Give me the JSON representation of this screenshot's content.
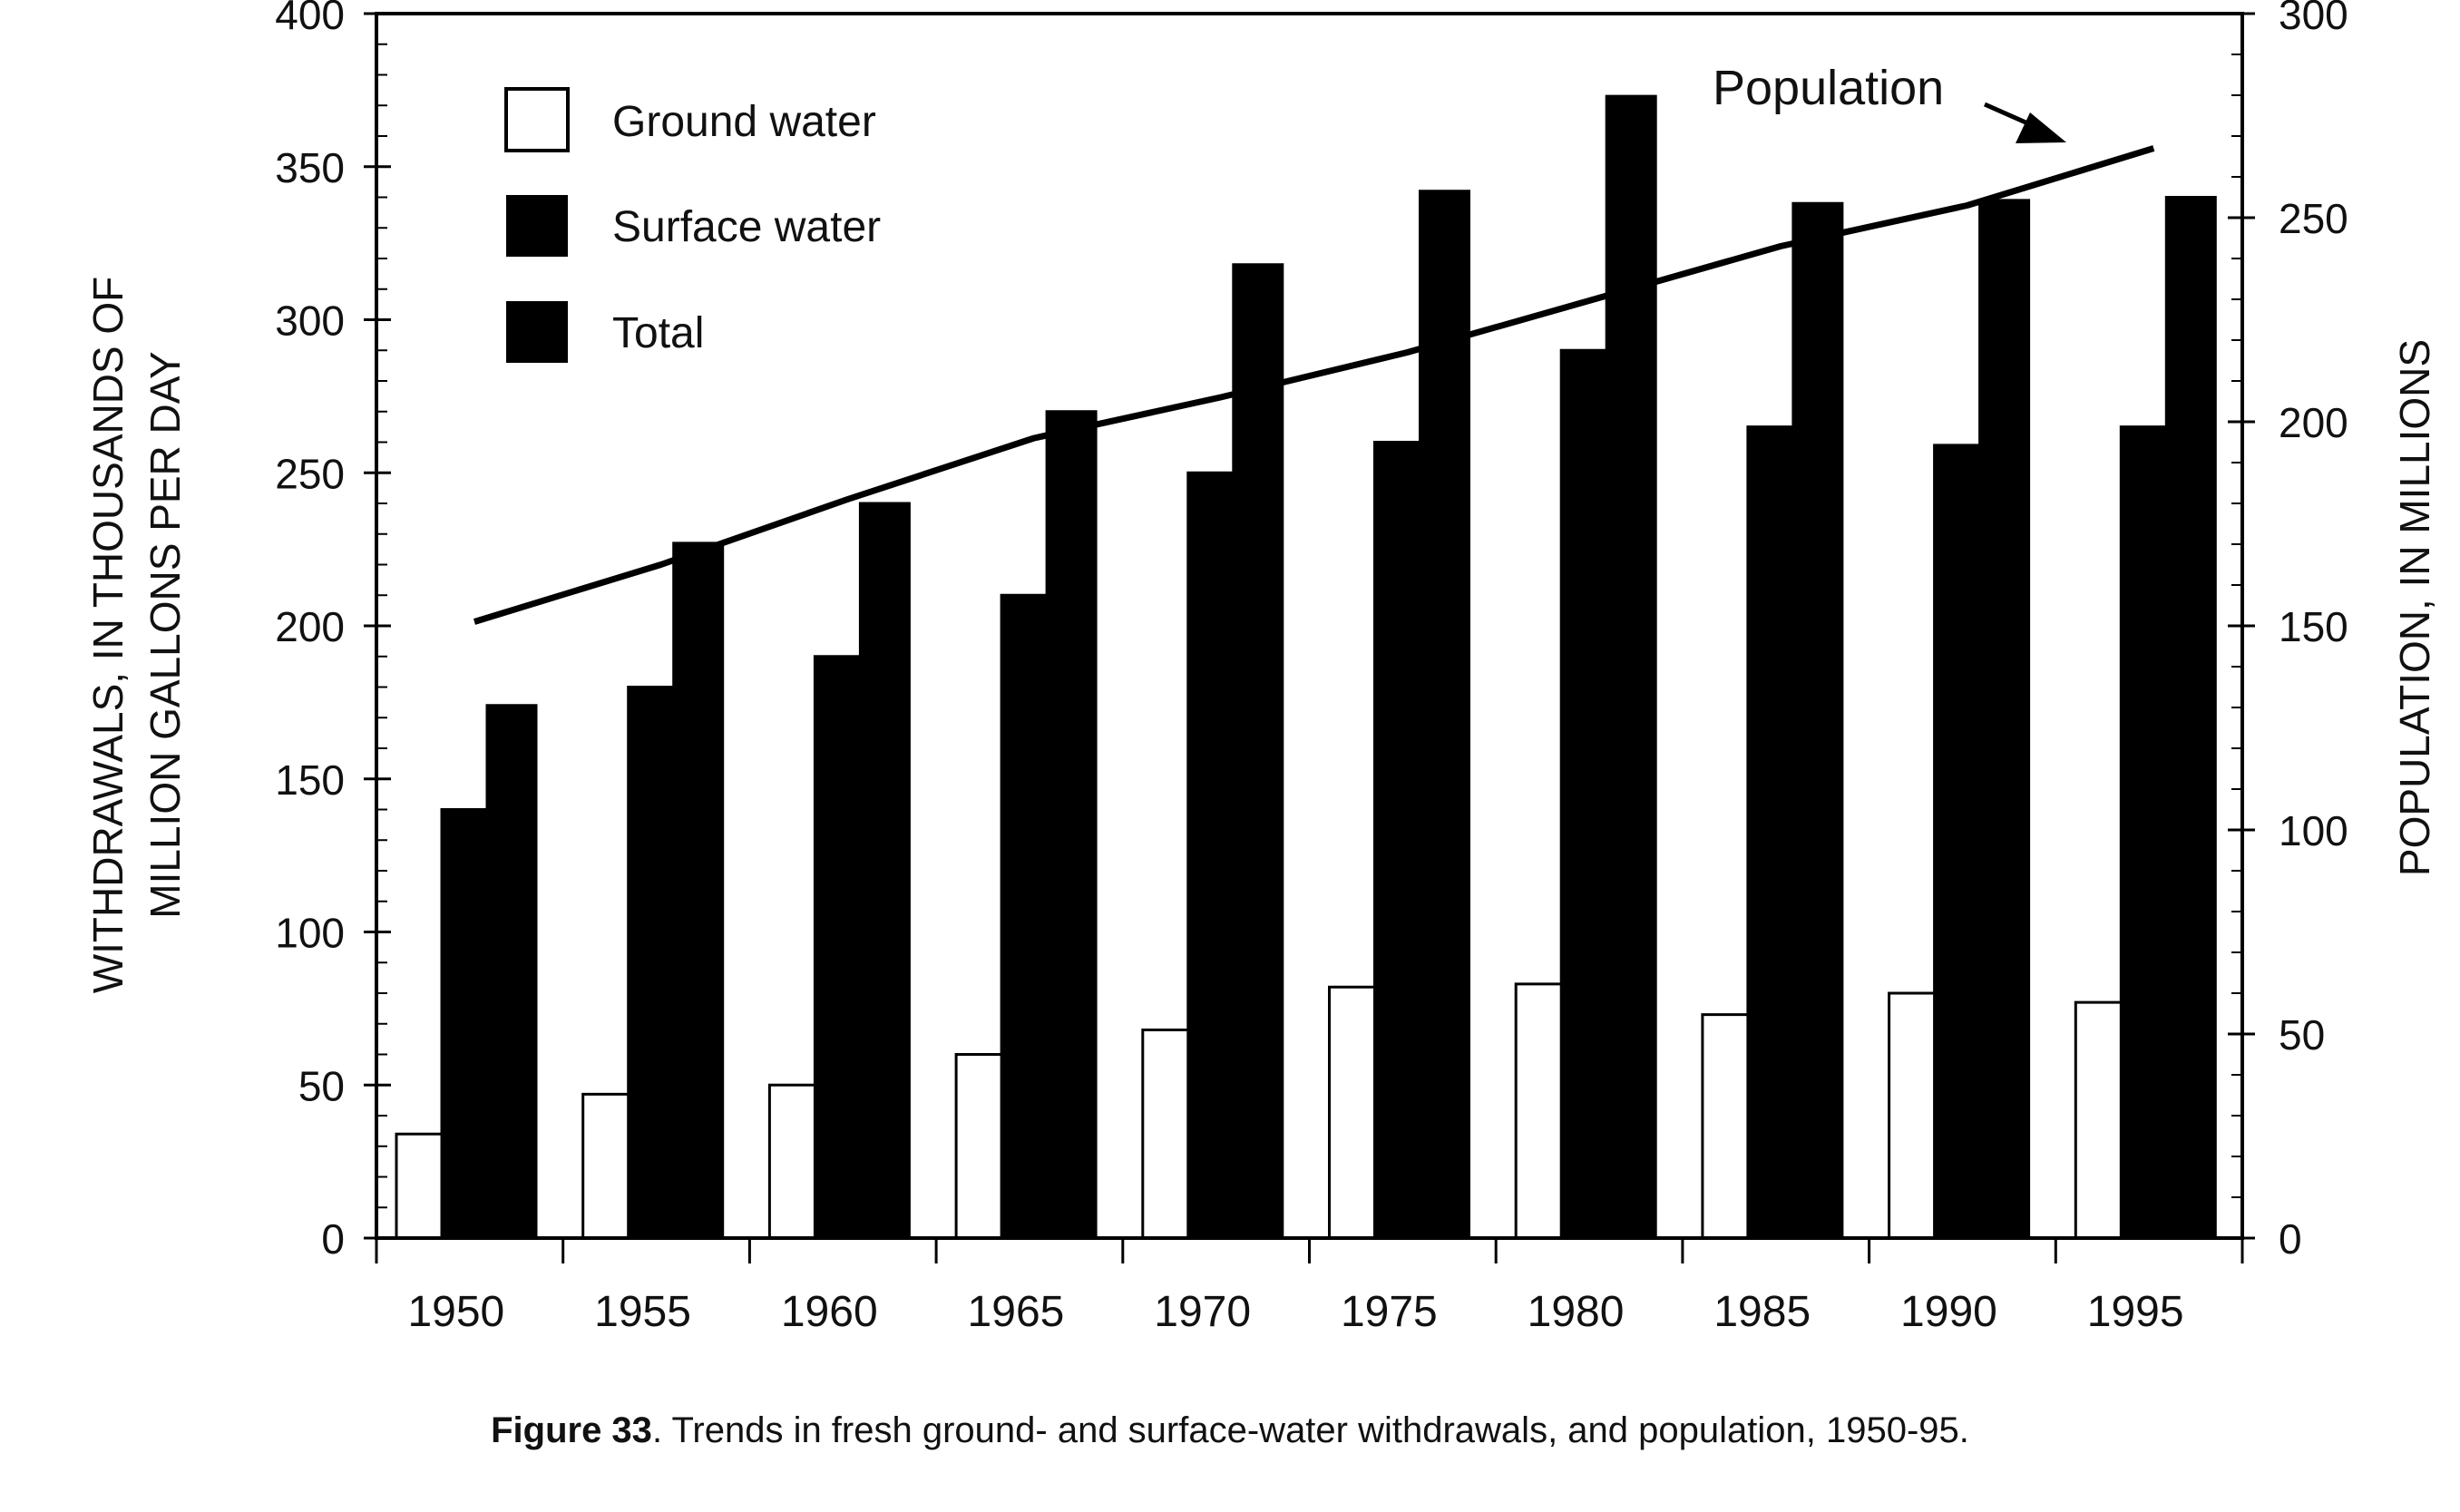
{
  "caption": {
    "label": "Figure 33",
    "text": ". Trends in fresh ground- and surface-water withdrawals, and population, 1950-95."
  },
  "chart_data": {
    "type": "bar",
    "categories": [
      "1950",
      "1955",
      "1960",
      "1965",
      "1970",
      "1975",
      "1980",
      "1985",
      "1990",
      "1995"
    ],
    "series": [
      {
        "name": "Ground water",
        "axis": "left",
        "color": "#ffffff",
        "values": [
          34,
          47,
          50,
          60,
          68,
          82,
          83,
          73,
          80,
          77
        ]
      },
      {
        "name": "Surface water",
        "axis": "left",
        "color": "#000000",
        "values": [
          140,
          180,
          190,
          210,
          250,
          260,
          290,
          265,
          259,
          265
        ]
      },
      {
        "name": "Total",
        "axis": "left",
        "color": "#000000",
        "values": [
          174,
          227,
          240,
          270,
          318,
          342,
          373,
          338,
          339,
          340
        ]
      },
      {
        "name": "Population",
        "axis": "right",
        "type": "line",
        "color": "#000000",
        "values": [
          151,
          165,
          181,
          196,
          206,
          217,
          230,
          243,
          253,
          267
        ]
      }
    ],
    "ylabel_left": [
      "WITHDRAWALS, IN THOUSANDS OF",
      "MILLION GALLONS PER DAY"
    ],
    "ylabel_right": "POPULATION, IN MILLIONS",
    "ylim_left": [
      0,
      400
    ],
    "yticks_left": [
      "0",
      "50",
      "100",
      "150",
      "200",
      "250",
      "300",
      "350",
      "400"
    ],
    "ylim_right": [
      0,
      300
    ],
    "yticks_right": [
      "0",
      "50",
      "100",
      "150",
      "200",
      "250",
      "300"
    ],
    "legend": {
      "position": "top-left",
      "entries": [
        "Ground water",
        "Surface water",
        "Total"
      ]
    },
    "annotation": "Population",
    "grid": false
  }
}
